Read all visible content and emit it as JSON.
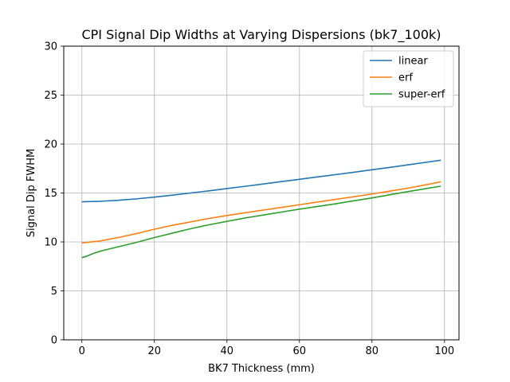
{
  "chart_data": {
    "type": "line",
    "title": "CPI Signal Dip Widths at Varying Dispersions (bk7_100k)",
    "xlabel": "BK7 Thickness (mm)",
    "ylabel": "Signal Dip FWHM",
    "xlim": [
      -5,
      104
    ],
    "ylim": [
      0,
      30
    ],
    "xticks": [
      0,
      20,
      40,
      60,
      80,
      100
    ],
    "yticks": [
      0,
      5,
      10,
      15,
      20,
      25,
      30
    ],
    "grid": true,
    "legend_position": "top-right",
    "series": [
      {
        "name": "linear",
        "color": "#1f77b4",
        "x": [
          0,
          5,
          10,
          15,
          20,
          25,
          30,
          35,
          40,
          45,
          50,
          55,
          60,
          65,
          70,
          75,
          80,
          85,
          90,
          95,
          99
        ],
        "y": [
          14.1,
          14.15,
          14.25,
          14.4,
          14.58,
          14.78,
          15.0,
          15.22,
          15.45,
          15.68,
          15.92,
          16.16,
          16.4,
          16.64,
          16.88,
          17.12,
          17.37,
          17.62,
          17.88,
          18.14,
          18.35
        ]
      },
      {
        "name": "erf",
        "color": "#ff7f0e",
        "x": [
          0,
          5,
          10,
          15,
          20,
          25,
          30,
          35,
          40,
          45,
          50,
          55,
          60,
          65,
          70,
          75,
          80,
          85,
          90,
          95,
          99
        ],
        "y": [
          9.9,
          10.1,
          10.45,
          10.85,
          11.3,
          11.7,
          12.05,
          12.4,
          12.7,
          12.98,
          13.25,
          13.52,
          13.8,
          14.08,
          14.35,
          14.62,
          14.9,
          15.2,
          15.5,
          15.85,
          16.15
        ]
      },
      {
        "name": "super-erf",
        "color": "#2ca02c",
        "x": [
          0,
          1,
          3,
          5,
          10,
          15,
          20,
          25,
          30,
          35,
          40,
          45,
          50,
          55,
          60,
          65,
          70,
          75,
          80,
          85,
          90,
          95,
          99
        ],
        "y": [
          8.4,
          8.5,
          8.8,
          9.05,
          9.5,
          9.95,
          10.45,
          10.9,
          11.35,
          11.75,
          12.1,
          12.45,
          12.75,
          13.05,
          13.35,
          13.62,
          13.9,
          14.2,
          14.5,
          14.82,
          15.15,
          15.45,
          15.7
        ]
      }
    ]
  }
}
